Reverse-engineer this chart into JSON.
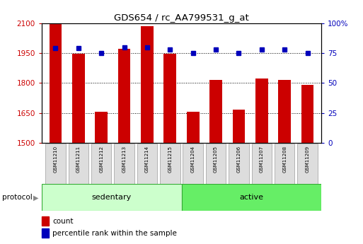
{
  "title": "GDS654 / rc_AA799531_g_at",
  "samples": [
    "GSM11210",
    "GSM11211",
    "GSM11212",
    "GSM11213",
    "GSM11214",
    "GSM11215",
    "GSM11204",
    "GSM11205",
    "GSM11206",
    "GSM11207",
    "GSM11208",
    "GSM11209"
  ],
  "counts": [
    2095,
    1948,
    1655,
    1970,
    2085,
    1948,
    1657,
    1815,
    1665,
    1822,
    1817,
    1790
  ],
  "percentiles": [
    79,
    79,
    75,
    80,
    80,
    78,
    75,
    78,
    75,
    78,
    78,
    75
  ],
  "groups": [
    {
      "label": "sedentary",
      "start": 0,
      "end": 6,
      "color": "#ccffcc"
    },
    {
      "label": "active",
      "start": 6,
      "end": 12,
      "color": "#66ee66"
    }
  ],
  "ylim_left": [
    1500,
    2100
  ],
  "ylim_right": [
    0,
    100
  ],
  "yticks_left": [
    1500,
    1650,
    1800,
    1950,
    2100
  ],
  "yticks_right": [
    0,
    25,
    50,
    75,
    100
  ],
  "bar_color": "#cc0000",
  "dot_color": "#0000bb",
  "left_tick_color": "#cc0000",
  "right_tick_color": "#0000bb",
  "legend_count_label": "count",
  "legend_pct_label": "percentile rank within the sample",
  "protocol_label": "protocol",
  "bar_width": 0.55
}
